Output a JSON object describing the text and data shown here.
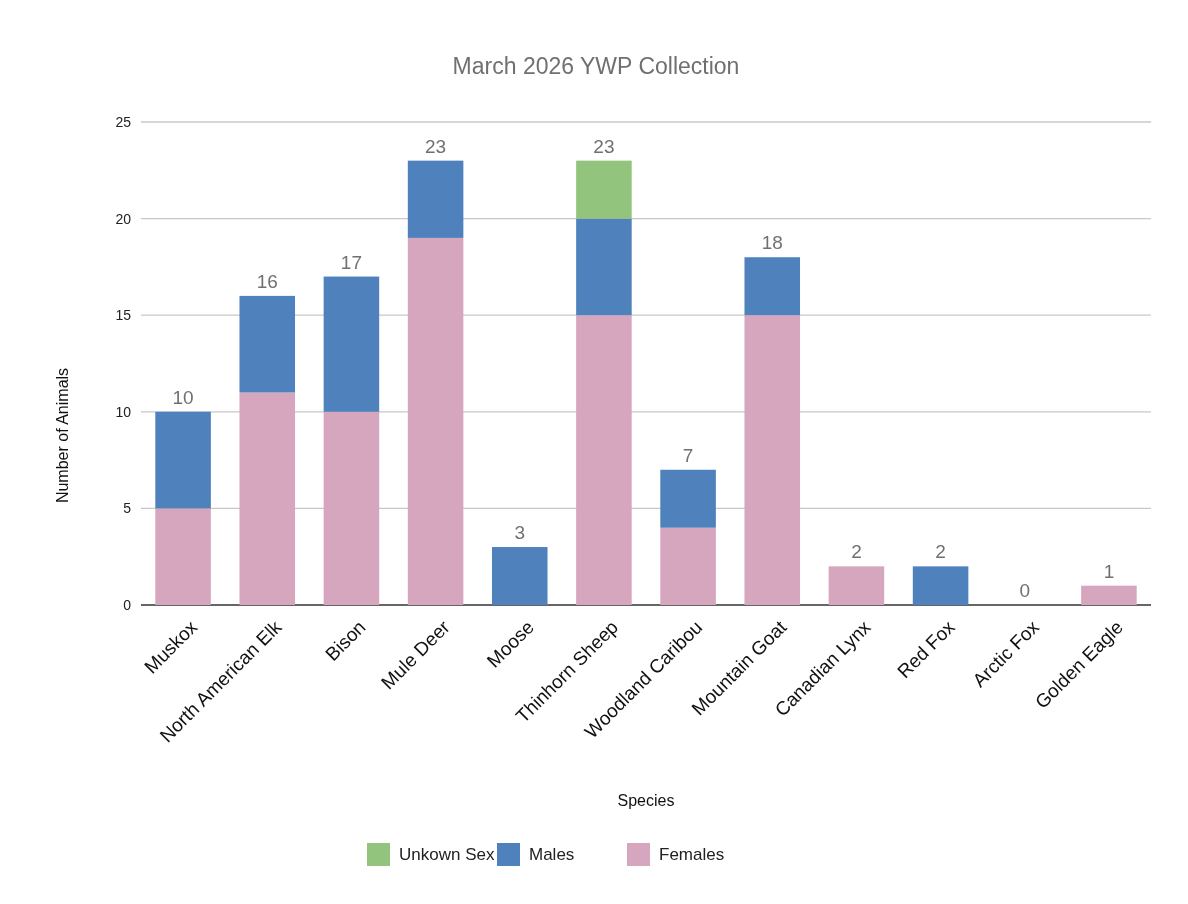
{
  "chart_data": {
    "type": "bar",
    "title": "March 2026 YWP Collection",
    "xlabel": "Species",
    "ylabel": "Number of Animals",
    "categories": [
      "Muskox",
      "North American Elk",
      "Bison",
      "Mule Deer",
      "Moose",
      "Thinhorn Sheep",
      "Woodland Caribou",
      "Mountain Goat",
      "Canadian Lynx",
      "Red Fox",
      "Arctic Fox",
      "Golden Eagle"
    ],
    "stacked": true,
    "series": [
      {
        "name": "Females",
        "color": "#d5a6bd",
        "values": [
          5,
          11,
          10,
          19,
          0,
          15,
          4,
          15,
          2,
          0,
          0,
          1
        ]
      },
      {
        "name": "Males",
        "color": "#4f81bd",
        "values": [
          5,
          5,
          7,
          4,
          3,
          5,
          3,
          3,
          0,
          2,
          0,
          0
        ]
      },
      {
        "name": "Unkown Sex",
        "color": "#93c47d",
        "values": [
          0,
          0,
          0,
          0,
          0,
          3,
          0,
          0,
          0,
          0,
          0,
          0
        ]
      }
    ],
    "totals": [
      "10",
      "16",
      "17",
      "23",
      "3",
      "23",
      "7",
      "18",
      "2",
      "2",
      "0",
      "1"
    ],
    "ylim": [
      0,
      25
    ],
    "yticks": [
      0,
      5,
      10,
      15,
      20,
      25
    ],
    "grid": "y",
    "legend": "bottom"
  }
}
